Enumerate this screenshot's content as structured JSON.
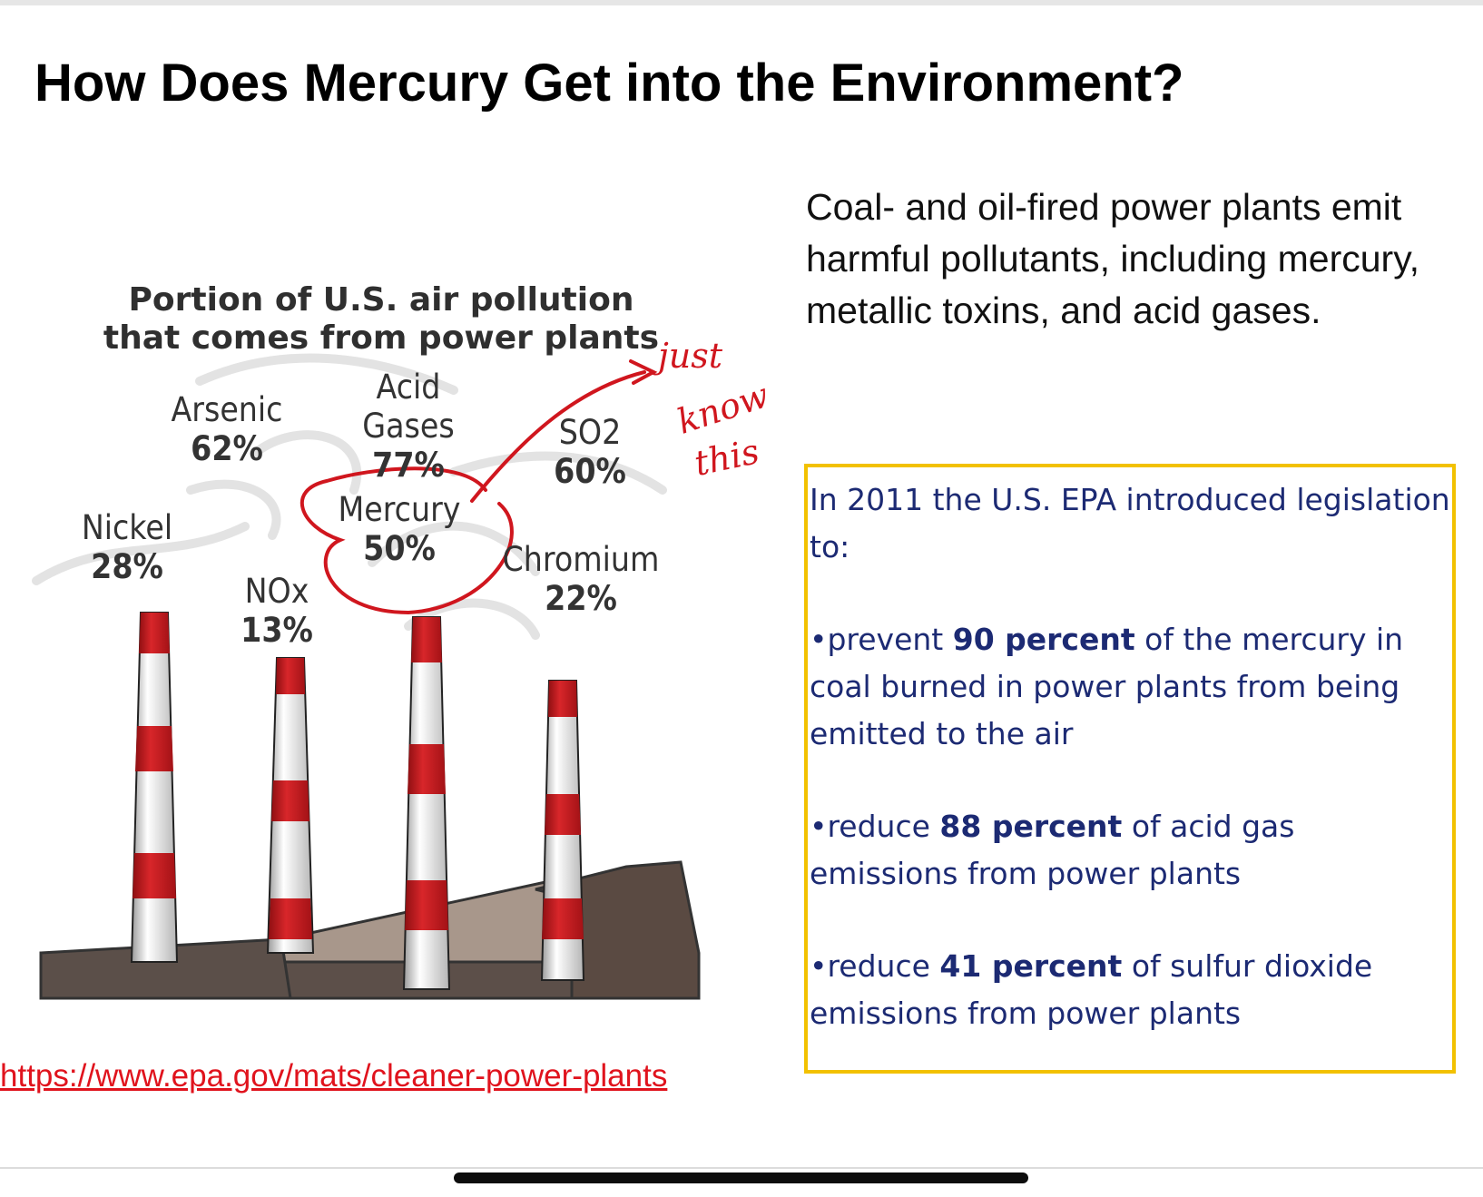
{
  "title": "How Does Mercury Get into the Environment?",
  "intro": "Coal- and oil-fired power plants emit harmful pollutants, including mercury, metallic toxins, and acid gases.",
  "illustration": {
    "title_line1": "Portion of U.S. air pollution",
    "title_line2": "that comes from power plants",
    "pollutants": [
      {
        "name": "Arsenic",
        "value": "62%"
      },
      {
        "name": "Acid Gases",
        "value": "77%"
      },
      {
        "name": "SO2",
        "value": "60%"
      },
      {
        "name": "Nickel",
        "value": "28%"
      },
      {
        "name": "Mercury",
        "value": "50%"
      },
      {
        "name": "NOx",
        "value": "13%"
      },
      {
        "name": "Chromium",
        "value": "22%"
      }
    ],
    "annotation": {
      "line1": "just",
      "line2": "know",
      "line3": "this"
    }
  },
  "epa_box": {
    "intro": "In 2011 the U.S. EPA introduced legislation to:",
    "bullets": [
      {
        "pre": "•prevent ",
        "bold": "90 percent",
        "post": " of the mercury in coal burned in power plants from being emitted to the air"
      },
      {
        "pre": "•reduce ",
        "bold": "88 percent",
        "post": " of acid gas emissions from power plants"
      },
      {
        "pre": "•reduce ",
        "bold": "41 percent",
        "post": " of sulfur dioxide emissions from power plants"
      }
    ]
  },
  "source_link": "https://www.epa.gov/mats/cleaner-power-plants",
  "colors": {
    "box_border": "#f2c100",
    "box_text": "#1c2a73",
    "link": "#e0131d",
    "annotation": "#d0161e",
    "stack_red": "#c8161d"
  }
}
